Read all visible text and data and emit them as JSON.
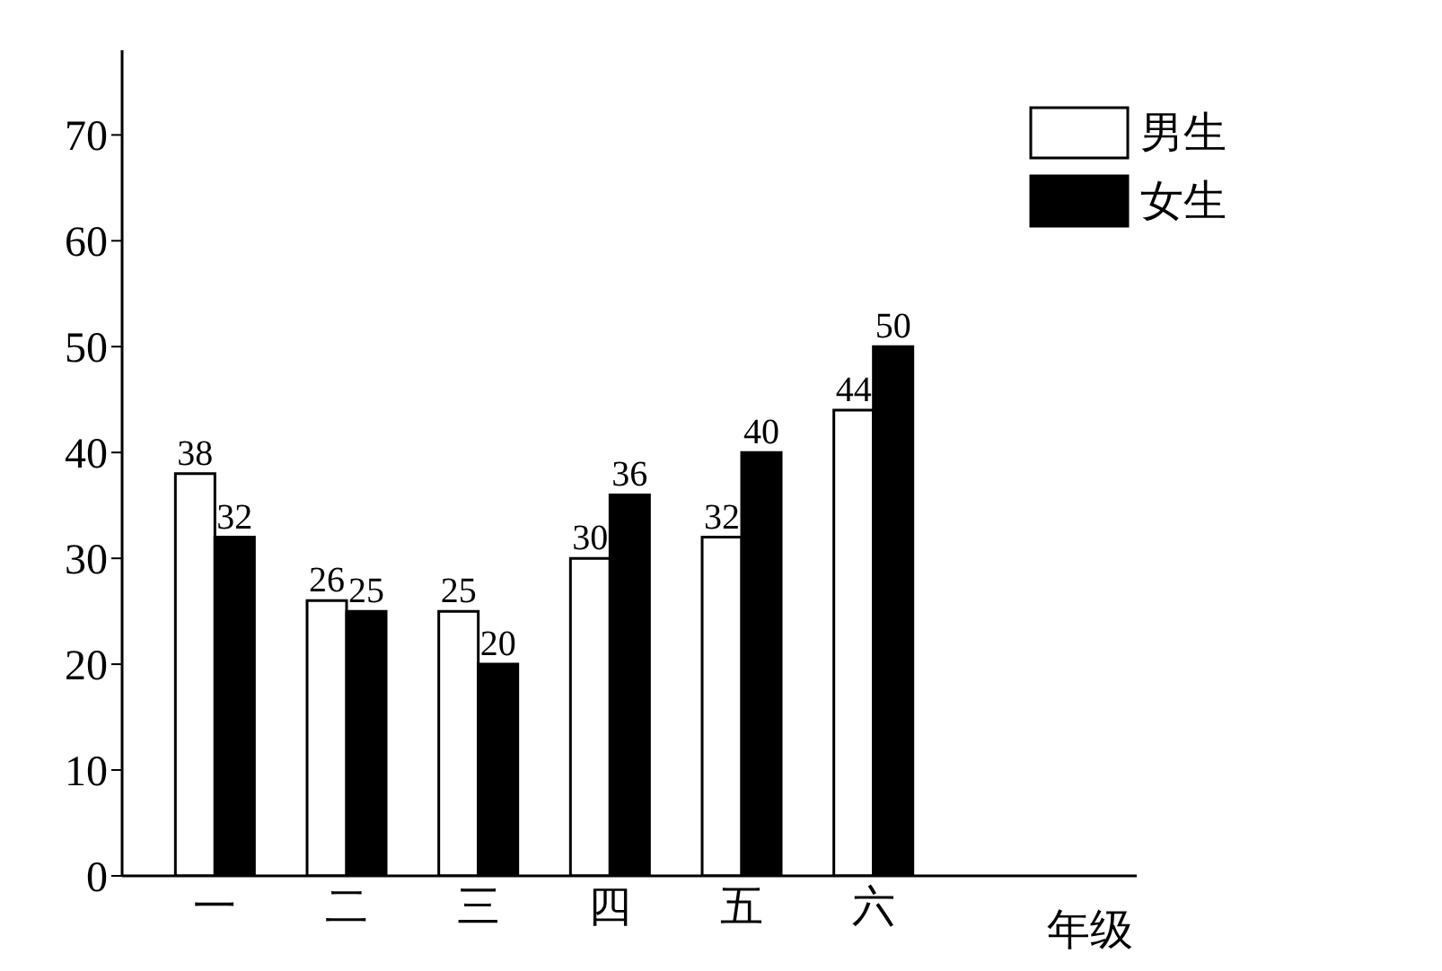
{
  "chart_data": {
    "type": "bar",
    "xlabel": "年级",
    "categories": [
      "一",
      "二",
      "三",
      "四",
      "五",
      "六"
    ],
    "series": [
      {
        "name": "男生",
        "color": "#ffffff",
        "values": [
          38,
          26,
          25,
          30,
          32,
          44
        ]
      },
      {
        "name": "女生",
        "color": "#000000",
        "values": [
          32,
          25,
          20,
          36,
          40,
          50
        ]
      }
    ],
    "ylim": [
      0,
      78
    ],
    "yticks": [
      0,
      10,
      20,
      30,
      40,
      50,
      60,
      70
    ],
    "data_labels": true,
    "legend": "top right",
    "grid": false
  }
}
